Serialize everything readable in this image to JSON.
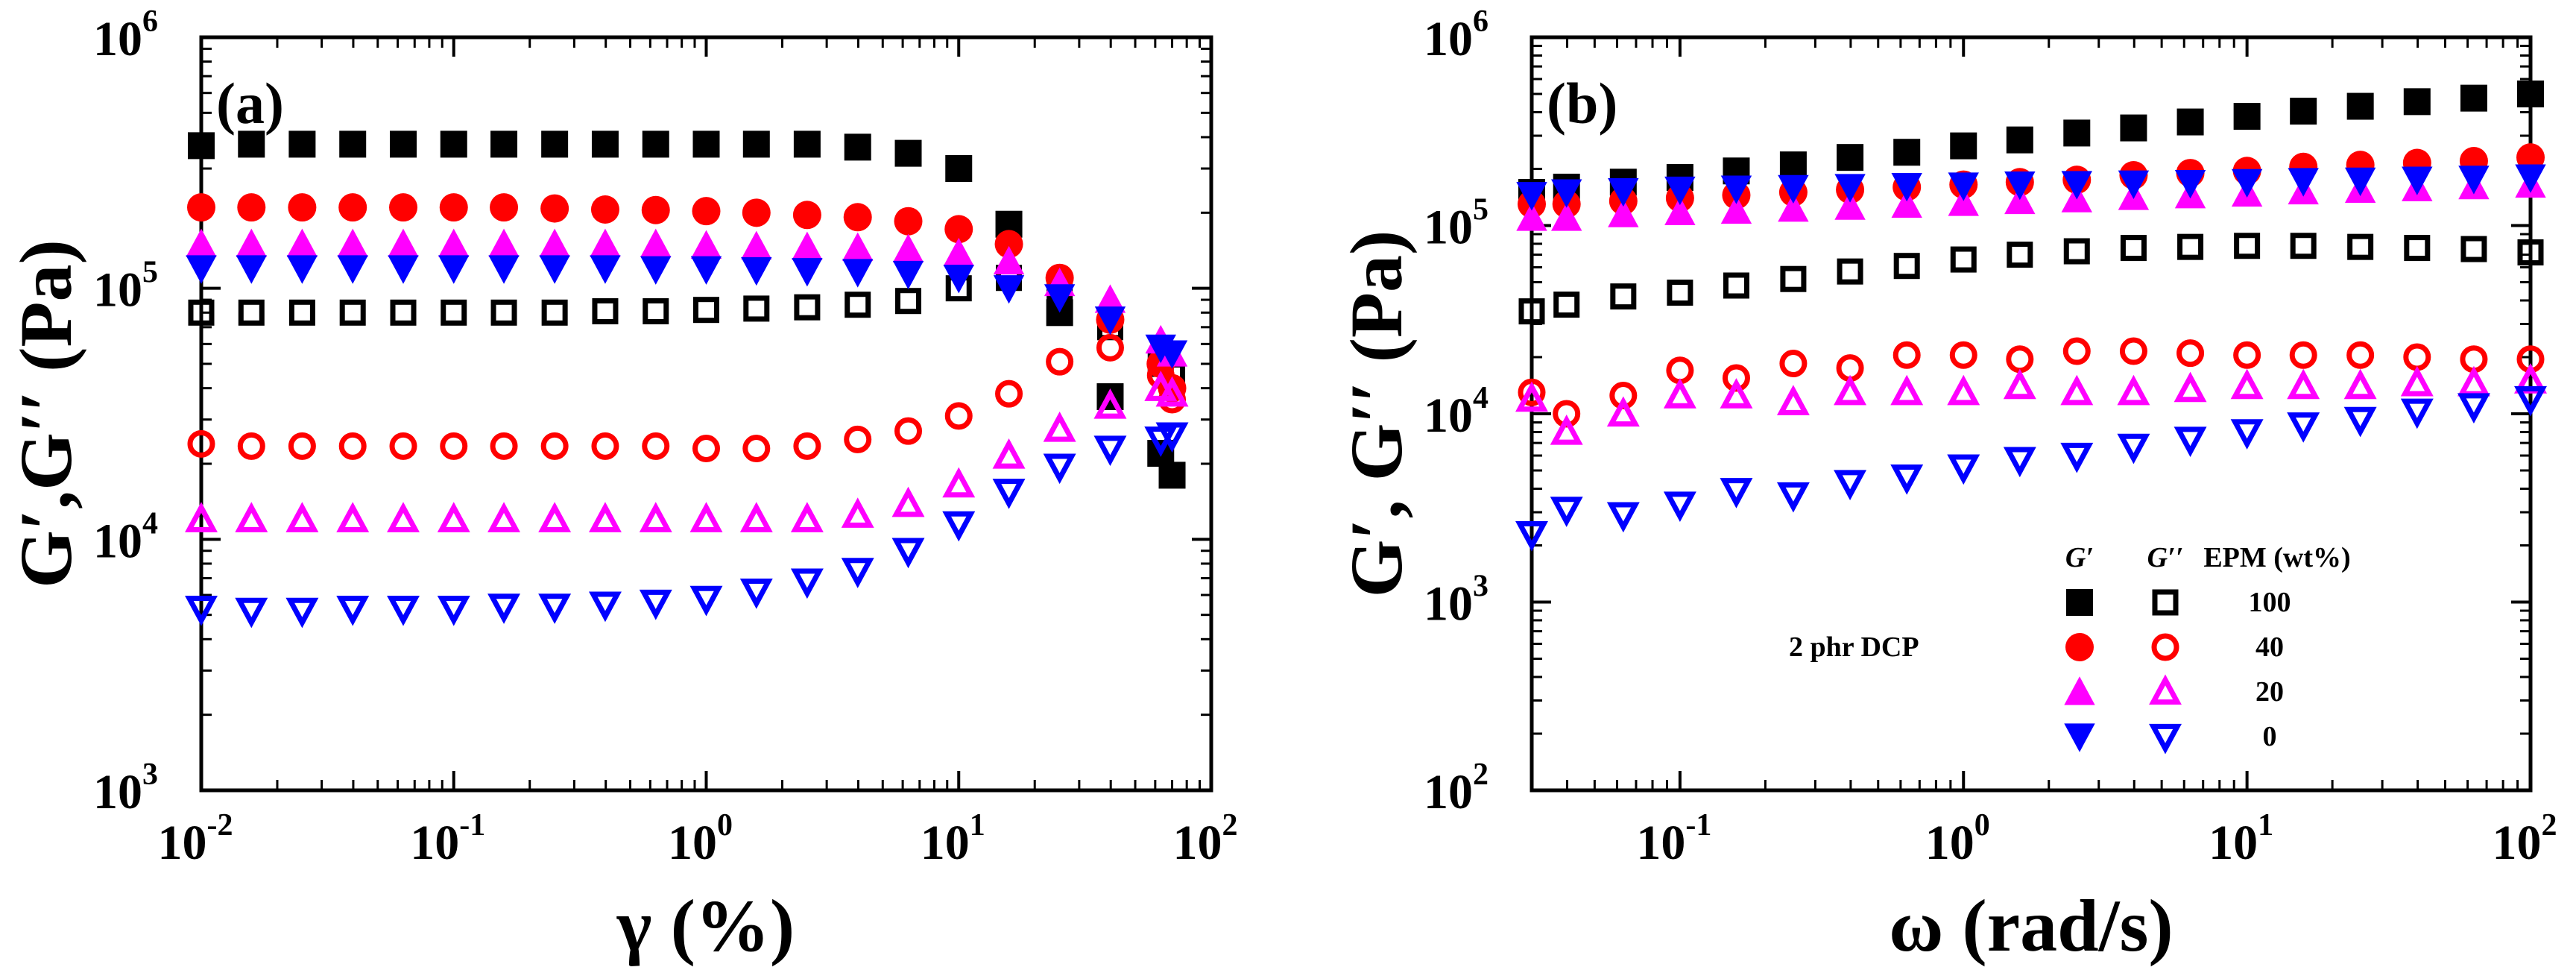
{
  "chart_data": [
    {
      "type": "scatter",
      "panel_label": "(a)",
      "title": "",
      "xlabel": "γ (%)",
      "ylabel": "G′,G′′ (Pa)",
      "xscale": "log",
      "yscale": "log",
      "xlim": [
        0.01,
        100
      ],
      "ylim": [
        1000,
        1000000
      ],
      "x_ticks": [
        {
          "base": "10",
          "exp": "-2"
        },
        {
          "base": "10",
          "exp": "-1"
        },
        {
          "base": "10",
          "exp": "0"
        },
        {
          "base": "10",
          "exp": "1"
        },
        {
          "base": "10",
          "exp": "2"
        }
      ],
      "y_ticks": [
        {
          "base": "10",
          "exp": "3"
        },
        {
          "base": "10",
          "exp": "4"
        },
        {
          "base": "10",
          "exp": "5"
        },
        {
          "base": "10",
          "exp": "6"
        }
      ],
      "series": [
        {
          "name": "G' 100 wt%",
          "marker": "square",
          "fill": true,
          "color": "#000000",
          "x": [
            0.01,
            0.0158,
            0.0251,
            0.0398,
            0.0631,
            0.1,
            0.158,
            0.251,
            0.398,
            0.631,
            1,
            1.58,
            2.51,
            3.98,
            6.31,
            10,
            15.8,
            25.1,
            39.8,
            63.1,
            70
          ],
          "y": [
            370000,
            375000,
            375000,
            375000,
            375000,
            375000,
            375000,
            375000,
            375000,
            375000,
            375000,
            375000,
            375000,
            365000,
            345000,
            300000,
            180000,
            80000,
            37000,
            22000,
            18000
          ]
        },
        {
          "name": "G'' 100 wt%",
          "marker": "square",
          "fill": false,
          "color": "#000000",
          "x": [
            0.01,
            0.0158,
            0.0251,
            0.0398,
            0.0631,
            0.1,
            0.158,
            0.251,
            0.398,
            0.631,
            1,
            1.58,
            2.51,
            3.98,
            6.31,
            10,
            15.8,
            25.1,
            39.8,
            63.1,
            70
          ],
          "y": [
            80000,
            80000,
            80000,
            80000,
            80000,
            80000,
            80000,
            80000,
            81000,
            81000,
            82000,
            83000,
            84000,
            86000,
            89000,
            100000,
            110000,
            100000,
            70000,
            50000,
            45000
          ]
        },
        {
          "name": "G' 40 wt%",
          "marker": "circle",
          "fill": true,
          "color": "#ff0000",
          "x": [
            0.01,
            0.0158,
            0.0251,
            0.0398,
            0.0631,
            0.1,
            0.158,
            0.251,
            0.398,
            0.631,
            1,
            1.58,
            2.51,
            3.98,
            6.31,
            10,
            15.8,
            25.1,
            39.8,
            63.1,
            70
          ],
          "y": [
            210000,
            210000,
            210000,
            210000,
            210000,
            210000,
            210000,
            208000,
            206000,
            205000,
            203000,
            200000,
            196000,
            192000,
            185000,
            172000,
            150000,
            110000,
            75000,
            50000,
            40000
          ]
        },
        {
          "name": "G'' 40 wt%",
          "marker": "circle",
          "fill": false,
          "color": "#ff0000",
          "x": [
            0.01,
            0.0158,
            0.0251,
            0.0398,
            0.0631,
            0.1,
            0.158,
            0.251,
            0.398,
            0.631,
            1,
            1.58,
            2.51,
            3.98,
            6.31,
            10,
            15.8,
            25.1,
            39.8,
            63.1,
            70
          ],
          "y": [
            24000,
            23500,
            23500,
            23500,
            23500,
            23500,
            23500,
            23500,
            23500,
            23500,
            23000,
            23000,
            23500,
            25000,
            27000,
            31000,
            38000,
            51000,
            58000,
            45000,
            36000
          ]
        },
        {
          "name": "G' 20 wt%",
          "marker": "triangle-up",
          "fill": true,
          "color": "#ff00ff",
          "x": [
            0.01,
            0.0158,
            0.0251,
            0.0398,
            0.0631,
            0.1,
            0.158,
            0.251,
            0.398,
            0.631,
            1,
            1.58,
            2.51,
            3.98,
            6.31,
            10,
            15.8,
            25.1,
            39.8,
            63.1,
            70
          ],
          "y": [
            150000,
            150000,
            150000,
            150000,
            150000,
            150000,
            150000,
            150000,
            150000,
            150000,
            148000,
            147000,
            146000,
            145000,
            143000,
            138000,
            128000,
            105000,
            90000,
            62000,
            55000
          ]
        },
        {
          "name": "G'' 20 wt%",
          "marker": "triangle-up",
          "fill": false,
          "color": "#ff00ff",
          "x": [
            0.01,
            0.0158,
            0.0251,
            0.0398,
            0.0631,
            0.1,
            0.158,
            0.251,
            0.398,
            0.631,
            1,
            1.58,
            2.51,
            3.98,
            6.31,
            10,
            15.8,
            25.1,
            39.8,
            63.1,
            70
          ],
          "y": [
            12000,
            12000,
            12000,
            12000,
            12000,
            12000,
            12000,
            12000,
            12000,
            12000,
            12000,
            12000,
            12000,
            12500,
            13800,
            16500,
            21500,
            27500,
            34000,
            40000,
            38000
          ]
        },
        {
          "name": "G' 0 wt%",
          "marker": "triangle-down",
          "fill": true,
          "color": "#0000ff",
          "x": [
            0.01,
            0.0158,
            0.0251,
            0.0398,
            0.0631,
            0.1,
            0.158,
            0.251,
            0.398,
            0.631,
            1,
            1.58,
            2.51,
            3.98,
            6.31,
            10,
            15.8,
            25.1,
            39.8,
            63.1,
            70
          ],
          "y": [
            120000,
            120000,
            120000,
            120000,
            120000,
            120000,
            120000,
            120000,
            120000,
            119000,
            119000,
            118000,
            117000,
            116000,
            114000,
            110000,
            100000,
            92000,
            75000,
            58000,
            55000
          ]
        },
        {
          "name": "G'' 0 wt%",
          "marker": "triangle-down",
          "fill": false,
          "color": "#0000ff",
          "x": [
            0.01,
            0.0158,
            0.0251,
            0.0398,
            0.0631,
            0.1,
            0.158,
            0.251,
            0.398,
            0.631,
            1,
            1.58,
            2.51,
            3.98,
            6.31,
            10,
            15.8,
            25.1,
            39.8,
            63.1,
            70
          ],
          "y": [
            5300,
            5200,
            5200,
            5300,
            5300,
            5300,
            5400,
            5400,
            5500,
            5600,
            5800,
            6200,
            6800,
            7500,
            9000,
            11500,
            15500,
            19500,
            23000,
            25000,
            26000
          ]
        }
      ]
    },
    {
      "type": "scatter",
      "panel_label": "(b)",
      "title": "",
      "xlabel": "ω (rad/s)",
      "ylabel": "G′, G′′ (Pa)",
      "xscale": "log",
      "yscale": "log",
      "xlim": [
        0.03,
        100
      ],
      "ylim": [
        100,
        1000000
      ],
      "x_ticks": [
        {
          "base": "10",
          "exp": "-1"
        },
        {
          "base": "10",
          "exp": "0"
        },
        {
          "base": "10",
          "exp": "1"
        },
        {
          "base": "10",
          "exp": "2"
        }
      ],
      "y_ticks": [
        {
          "base": "10",
          "exp": "2"
        },
        {
          "base": "10",
          "exp": "3"
        },
        {
          "base": "10",
          "exp": "4"
        },
        {
          "base": "10",
          "exp": "5"
        },
        {
          "base": "10",
          "exp": "6"
        }
      ],
      "annotation": "2 phr DCP",
      "legend": {
        "headers": [
          "G′",
          "G′′",
          "EPM (wt%)"
        ],
        "entries": [
          {
            "label": "100",
            "marker": "square",
            "color": "#000000"
          },
          {
            "label": "40",
            "marker": "circle",
            "color": "#ff0000"
          },
          {
            "label": "20",
            "marker": "triangle-up",
            "color": "#ff00ff"
          },
          {
            "label": "0",
            "marker": "triangle-down",
            "color": "#0000ff"
          }
        ]
      },
      "series": [
        {
          "name": "G' 100 wt%",
          "marker": "square",
          "fill": true,
          "color": "#000000",
          "x": [
            0.03,
            0.0398,
            0.0631,
            0.1,
            0.158,
            0.251,
            0.398,
            0.631,
            1,
            1.58,
            2.51,
            3.98,
            6.31,
            10,
            15.8,
            25.1,
            39.8,
            63.1,
            100
          ],
          "y": [
            150000,
            160000,
            170000,
            180000,
            195000,
            210000,
            230000,
            245000,
            265000,
            285000,
            310000,
            330000,
            355000,
            380000,
            405000,
            430000,
            455000,
            475000,
            500000
          ]
        },
        {
          "name": "G'' 100 wt%",
          "marker": "square",
          "fill": false,
          "color": "#000000",
          "x": [
            0.03,
            0.0398,
            0.0631,
            0.1,
            0.158,
            0.251,
            0.398,
            0.631,
            1,
            1.58,
            2.51,
            3.98,
            6.31,
            10,
            15.8,
            25.1,
            39.8,
            63.1,
            100
          ],
          "y": [
            35000,
            38000,
            42000,
            44000,
            48000,
            52000,
            57000,
            61000,
            66000,
            70000,
            73000,
            76000,
            77000,
            78000,
            78000,
            77000,
            76000,
            75000,
            72000
          ]
        },
        {
          "name": "G' 40 wt%",
          "marker": "circle",
          "fill": true,
          "color": "#ff0000",
          "x": [
            0.03,
            0.0398,
            0.0631,
            0.1,
            0.158,
            0.251,
            0.398,
            0.631,
            1,
            1.58,
            2.51,
            3.98,
            6.31,
            10,
            15.8,
            25.1,
            39.8,
            63.1,
            100
          ],
          "y": [
            130000,
            130000,
            135000,
            140000,
            145000,
            150000,
            155000,
            160000,
            165000,
            170000,
            175000,
            185000,
            190000,
            195000,
            205000,
            210000,
            215000,
            220000,
            230000
          ]
        },
        {
          "name": "G'' 40 wt%",
          "marker": "circle",
          "fill": false,
          "color": "#ff0000",
          "x": [
            0.03,
            0.0398,
            0.0631,
            0.1,
            0.158,
            0.251,
            0.398,
            0.631,
            1,
            1.58,
            2.51,
            3.98,
            6.31,
            10,
            15.8,
            25.1,
            39.8,
            63.1,
            100
          ],
          "y": [
            13000,
            10000,
            12500,
            17000,
            15500,
            18500,
            17500,
            20500,
            20500,
            19500,
            21500,
            21500,
            21000,
            20500,
            20500,
            20500,
            20000,
            19500,
            19500
          ]
        },
        {
          "name": "G' 20 wt%",
          "marker": "triangle-up",
          "fill": true,
          "color": "#ff00ff",
          "x": [
            0.03,
            0.0398,
            0.0631,
            0.1,
            0.158,
            0.251,
            0.398,
            0.631,
            1,
            1.58,
            2.51,
            3.98,
            6.31,
            10,
            15.8,
            25.1,
            39.8,
            63.1,
            100
          ],
          "y": [
            110000,
            110000,
            115000,
            118000,
            120000,
            123000,
            126000,
            129000,
            132000,
            135000,
            138000,
            142000,
            145000,
            148000,
            152000,
            155000,
            158000,
            162000,
            165000
          ]
        },
        {
          "name": "G'' 20 wt%",
          "marker": "triangle-up",
          "fill": false,
          "color": "#ff00ff",
          "x": [
            0.03,
            0.0398,
            0.0631,
            0.1,
            0.158,
            0.251,
            0.398,
            0.631,
            1,
            1.58,
            2.51,
            3.98,
            6.31,
            10,
            15.8,
            25.1,
            39.8,
            63.1,
            100
          ],
          "y": [
            12000,
            8000,
            10000,
            12500,
            12500,
            11500,
            13000,
            13000,
            13000,
            14000,
            13000,
            13000,
            13500,
            14000,
            14000,
            14000,
            14500,
            14500,
            15000
          ]
        },
        {
          "name": "G' 0 wt%",
          "marker": "triangle-down",
          "fill": true,
          "color": "#0000ff",
          "x": [
            0.03,
            0.0398,
            0.0631,
            0.1,
            0.158,
            0.251,
            0.398,
            0.631,
            1,
            1.58,
            2.51,
            3.98,
            6.31,
            10,
            15.8,
            25.1,
            39.8,
            63.1,
            100
          ],
          "y": [
            145000,
            150000,
            152000,
            155000,
            157000,
            158000,
            160000,
            162000,
            163000,
            165000,
            166000,
            167000,
            168000,
            170000,
            172000,
            173000,
            175000,
            177000,
            180000
          ]
        },
        {
          "name": "G'' 0 wt%",
          "marker": "triangle-down",
          "fill": false,
          "color": "#0000ff",
          "x": [
            0.03,
            0.0398,
            0.0631,
            0.1,
            0.158,
            0.251,
            0.398,
            0.631,
            1,
            1.58,
            2.51,
            3.98,
            6.31,
            10,
            15.8,
            25.1,
            39.8,
            63.1,
            100
          ],
          "y": [
            2300,
            3100,
            2900,
            3300,
            3900,
            3700,
            4300,
            4600,
            5200,
            5700,
            6000,
            6700,
            7300,
            8000,
            8700,
            9300,
            10300,
            11000,
            12000
          ]
        }
      ]
    }
  ]
}
